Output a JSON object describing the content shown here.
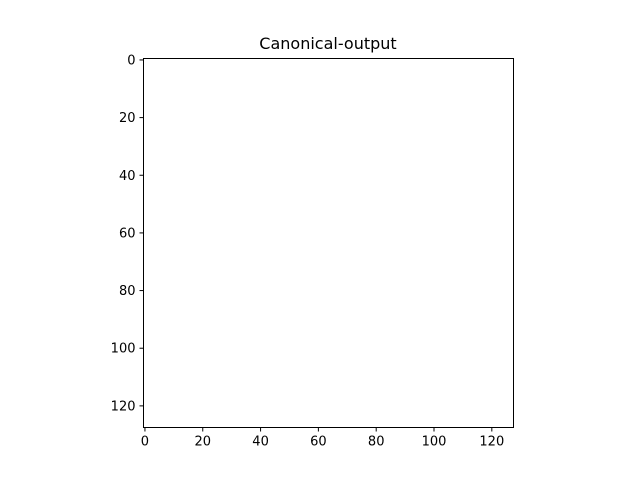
{
  "chart_data": {
    "type": "heatmap",
    "title": "Canonical-output",
    "xlabel": "",
    "ylabel": "",
    "xlim": [
      -0.5,
      127.5
    ],
    "ylim": [
      127.5,
      -0.5
    ],
    "y_inverted": true,
    "x_ticks": [
      0,
      20,
      40,
      60,
      80,
      100,
      120
    ],
    "y_ticks": [
      0,
      20,
      40,
      60,
      80,
      100,
      120
    ],
    "x_tick_labels": [
      "0",
      "20",
      "40",
      "60",
      "80",
      "100",
      "120"
    ],
    "y_tick_labels": [
      "0",
      "20",
      "40",
      "60",
      "80",
      "100",
      "120"
    ],
    "image_size": [
      128,
      128
    ],
    "image_fill": "#ffffff",
    "grid": false,
    "legend": "none"
  }
}
